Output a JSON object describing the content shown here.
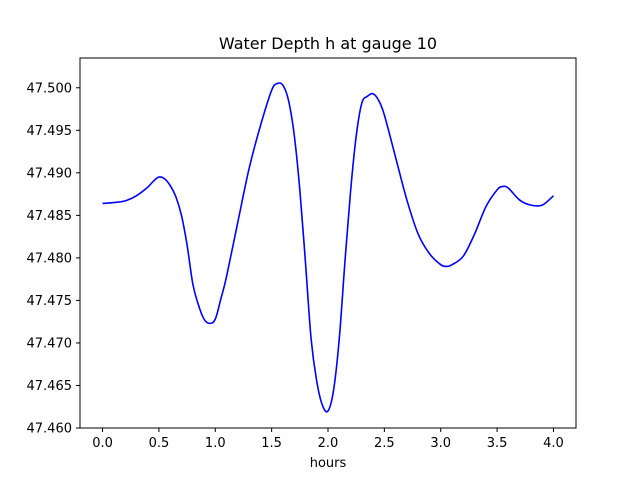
{
  "chart_data": {
    "type": "line",
    "title": "Water Depth h at gauge 10",
    "xlabel": "hours",
    "ylabel": "",
    "xlim": [
      -0.2,
      4.2
    ],
    "ylim": [
      47.46,
      47.5035
    ],
    "xticks": [
      0.0,
      0.5,
      1.0,
      1.5,
      2.0,
      2.5,
      3.0,
      3.5,
      4.0
    ],
    "xtick_labels": [
      "0.0",
      "0.5",
      "1.0",
      "1.5",
      "2.0",
      "2.5",
      "3.0",
      "3.5",
      "4.0"
    ],
    "yticks": [
      47.46,
      47.465,
      47.47,
      47.475,
      47.48,
      47.485,
      47.49,
      47.495,
      47.5
    ],
    "ytick_labels": [
      "47.460",
      "47.465",
      "47.470",
      "47.475",
      "47.480",
      "47.485",
      "47.490",
      "47.495",
      "47.500"
    ],
    "grid": false,
    "series": [
      {
        "color": "#0000ff",
        "x": [
          0.0,
          0.1,
          0.2,
          0.3,
          0.4,
          0.45,
          0.5,
          0.55,
          0.6,
          0.65,
          0.7,
          0.75,
          0.8,
          0.85,
          0.9,
          0.95,
          1.0,
          1.05,
          1.1,
          1.2,
          1.3,
          1.4,
          1.5,
          1.55,
          1.6,
          1.65,
          1.7,
          1.75,
          1.8,
          1.85,
          1.9,
          1.95,
          2.0,
          2.05,
          2.1,
          2.15,
          2.2,
          2.25,
          2.3,
          2.35,
          2.4,
          2.45,
          2.5,
          2.6,
          2.7,
          2.8,
          2.9,
          3.0,
          3.05,
          3.1,
          3.2,
          3.3,
          3.4,
          3.5,
          3.55,
          3.6,
          3.7,
          3.8,
          3.9,
          4.0
        ],
        "y": [
          47.4864,
          47.4865,
          47.4867,
          47.4873,
          47.4883,
          47.489,
          47.4895,
          47.4893,
          47.4885,
          47.4872,
          47.485,
          47.4815,
          47.477,
          47.4745,
          47.4728,
          47.4723,
          47.4728,
          47.4752,
          47.4778,
          47.4842,
          47.4905,
          47.4955,
          47.4997,
          47.5005,
          47.5003,
          47.4985,
          47.4945,
          47.488,
          47.4795,
          47.4705,
          47.4655,
          47.4627,
          47.462,
          47.4645,
          47.4705,
          47.4795,
          47.4878,
          47.4943,
          47.4982,
          47.499,
          47.4993,
          47.4985,
          47.4968,
          47.4918,
          47.4868,
          47.4828,
          47.4805,
          47.4792,
          47.479,
          47.4792,
          47.4802,
          47.4828,
          47.486,
          47.488,
          47.4884,
          47.4882,
          47.4868,
          47.4862,
          47.4862,
          47.4873
        ]
      }
    ]
  }
}
